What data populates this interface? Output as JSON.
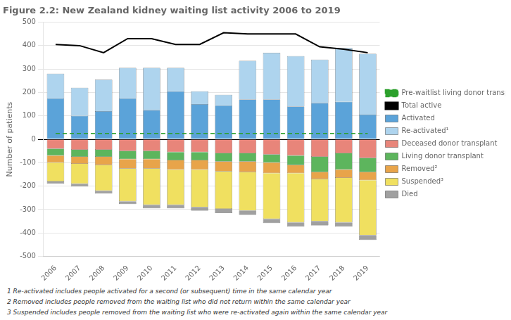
{
  "chart_data": {
    "type": "bar",
    "title": "Figure 2.2: New Zealand kidney waiting list activity 2006 to 2019",
    "y_label": "Number of patients",
    "categories": [
      "2006",
      "2007",
      "2008",
      "2009",
      "2010",
      "2011",
      "2012",
      "2013",
      "2014",
      "2015",
      "2016",
      "2017",
      "2018",
      "2019"
    ],
    "series": [
      {
        "name": "Activated",
        "type": "bar",
        "color": "#5ba3d9",
        "values": [
          175,
          100,
          120,
          175,
          125,
          205,
          150,
          145,
          170,
          170,
          140,
          155,
          160,
          105
        ]
      },
      {
        "name": "Re-activated¹",
        "type": "bar",
        "color": "#aed4ee",
        "values": [
          105,
          120,
          135,
          130,
          180,
          100,
          55,
          45,
          165,
          200,
          215,
          185,
          230,
          260
        ]
      },
      {
        "name": "Deceased donor transplant",
        "type": "bar",
        "color": "#e8857a",
        "values": [
          -40,
          -45,
          -45,
          -50,
          -50,
          -55,
          -55,
          -60,
          -60,
          -65,
          -70,
          -75,
          -60,
          -80
        ]
      },
      {
        "name": "Living donor transplant",
        "type": "bar",
        "color": "#5db55d",
        "values": [
          -30,
          -30,
          -30,
          -35,
          -35,
          -35,
          -35,
          -35,
          -35,
          -35,
          -40,
          -65,
          -70,
          -60
        ]
      },
      {
        "name": "Removed²",
        "type": "bar",
        "color": "#e8a44a",
        "values": [
          -30,
          -30,
          -35,
          -40,
          -40,
          -40,
          -40,
          -42,
          -45,
          -45,
          -35,
          -30,
          -35,
          -35
        ]
      },
      {
        "name": "Suspended³",
        "type": "bar",
        "color": "#f0e060",
        "values": [
          -80,
          -85,
          -110,
          -140,
          -155,
          -150,
          -160,
          -160,
          -165,
          -195,
          -210,
          -180,
          -190,
          -235
        ]
      },
      {
        "name": "Died",
        "type": "bar",
        "color": "#a0a0a0",
        "values": [
          -10,
          -12,
          -12,
          -12,
          -15,
          -15,
          -15,
          -18,
          -18,
          -18,
          -18,
          -18,
          -18,
          -20
        ]
      },
      {
        "name": "Pre-waitlist living donor transplant",
        "type": "line",
        "color": "#2ca02c",
        "line_style": "dashed",
        "values": [
          25,
          25,
          25,
          25,
          25,
          25,
          25,
          25,
          25,
          25,
          25,
          25,
          25,
          25
        ]
      },
      {
        "name": "Total active",
        "type": "line",
        "color": "#000000",
        "line_style": "solid",
        "values": [
          405,
          400,
          370,
          430,
          430,
          405,
          405,
          455,
          450,
          450,
          450,
          395,
          385,
          370
        ]
      }
    ],
    "stacked": true,
    "ylim": [
      -500,
      500
    ],
    "yticks": [
      -500,
      -400,
      -300,
      -200,
      -100,
      0,
      100,
      200,
      300,
      400,
      500
    ],
    "grid": "y",
    "legend": "right",
    "annotations": [
      "1 Re-activated includes people activated for a second (or subsequent) time in the same calendar year",
      "2 Removed includes people removed from the waiting list who did not return within the same calendar year",
      "3 Suspended includes people removed from the waiting list who were re-activated again within the same calendar year"
    ]
  }
}
